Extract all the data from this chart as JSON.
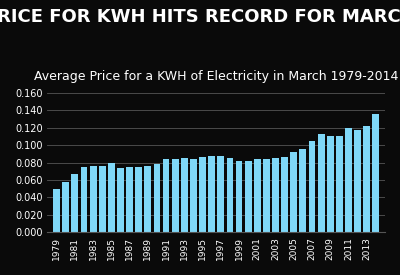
{
  "title": "PRICE FOR KWH HITS RECORD FOR MARCH",
  "subtitle": "Average Price for a KWH of Electricity in March 1979-2014",
  "years": [
    1979,
    1980,
    1981,
    1982,
    1983,
    1984,
    1985,
    1986,
    1987,
    1988,
    1989,
    1990,
    1991,
    1992,
    1993,
    1994,
    1995,
    1996,
    1997,
    1998,
    1999,
    2000,
    2001,
    2002,
    2003,
    2004,
    2005,
    2006,
    2007,
    2008,
    2009,
    2010,
    2011,
    2012,
    2013,
    2014
  ],
  "values": [
    0.0497,
    0.058,
    0.0668,
    0.0748,
    0.0765,
    0.0765,
    0.0792,
    0.0741,
    0.0745,
    0.0745,
    0.0762,
    0.0784,
    0.0836,
    0.0838,
    0.0849,
    0.084,
    0.0867,
    0.0876,
    0.0878,
    0.0854,
    0.0822,
    0.0819,
    0.0839,
    0.0836,
    0.0857,
    0.0862,
    0.0921,
    0.0959,
    0.1048,
    0.1129,
    0.1109,
    0.1109,
    0.1202,
    0.1175,
    0.1221,
    0.136
  ],
  "xtick_labels": [
    "1979",
    "1981",
    "1983",
    "1985",
    "1987",
    "1989",
    "1991",
    "1993",
    "1995",
    "1997",
    "1999",
    "2001",
    "2003",
    "2005",
    "2007",
    "2009",
    "2011",
    "2013"
  ],
  "xtick_positions": [
    1979,
    1981,
    1983,
    1985,
    1987,
    1989,
    1991,
    1993,
    1995,
    1997,
    1999,
    2001,
    2003,
    2005,
    2007,
    2009,
    2011,
    2013
  ],
  "ylim": [
    0,
    0.17
  ],
  "yticks": [
    0.0,
    0.02,
    0.04,
    0.06,
    0.08,
    0.1,
    0.12,
    0.14,
    0.16
  ],
  "bar_color": "#7fd8f8",
  "background_color": "#0a0a0a",
  "text_color": "#ffffff",
  "grid_color": "#555555",
  "title_fontsize": 13,
  "subtitle_fontsize": 9
}
